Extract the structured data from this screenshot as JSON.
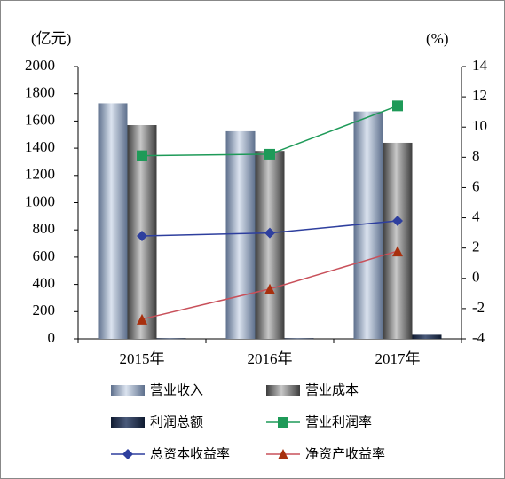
{
  "chart_data": {
    "type": "bar-line",
    "y_label": "(亿元)",
    "y2_label": "(%)",
    "categories": [
      "2015年",
      "2016年",
      "2017年"
    ],
    "series": [
      {
        "name": "营业收入",
        "type": "bar",
        "color": "#9aaecb",
        "values": [
          1730,
          1525,
          1670
        ]
      },
      {
        "name": "营业成本",
        "type": "bar",
        "color": "#7a7a7a",
        "values": [
          1570,
          1380,
          1440
        ]
      },
      {
        "name": "利润总额",
        "type": "bar",
        "color": "#1f2d4a",
        "values": [
          5,
          5,
          30
        ]
      },
      {
        "name": "营业利润率",
        "type": "line",
        "axis": "y2",
        "color": "#1e9a58",
        "marker": "square",
        "values": [
          8.1,
          8.2,
          11.4
        ]
      },
      {
        "name": "总资本收益率",
        "type": "line",
        "axis": "y2",
        "color": "#2e3f9e",
        "marker": "diamond",
        "values": [
          2.8,
          3.0,
          3.8
        ]
      },
      {
        "name": "净资产收益率",
        "type": "line",
        "axis": "y2",
        "color": "#c8505a",
        "marker": "triangle",
        "values": [
          -2.7,
          -0.7,
          1.8
        ]
      }
    ],
    "ylim": [
      0,
      2000
    ],
    "yticks": [
      0,
      200,
      400,
      600,
      800,
      1000,
      1200,
      1400,
      1600,
      1800,
      2000
    ],
    "y2lim": [
      -4,
      14
    ],
    "y2ticks": [
      -4,
      -2,
      0,
      2,
      4,
      6,
      8,
      10,
      12,
      14
    ],
    "grid": false
  }
}
